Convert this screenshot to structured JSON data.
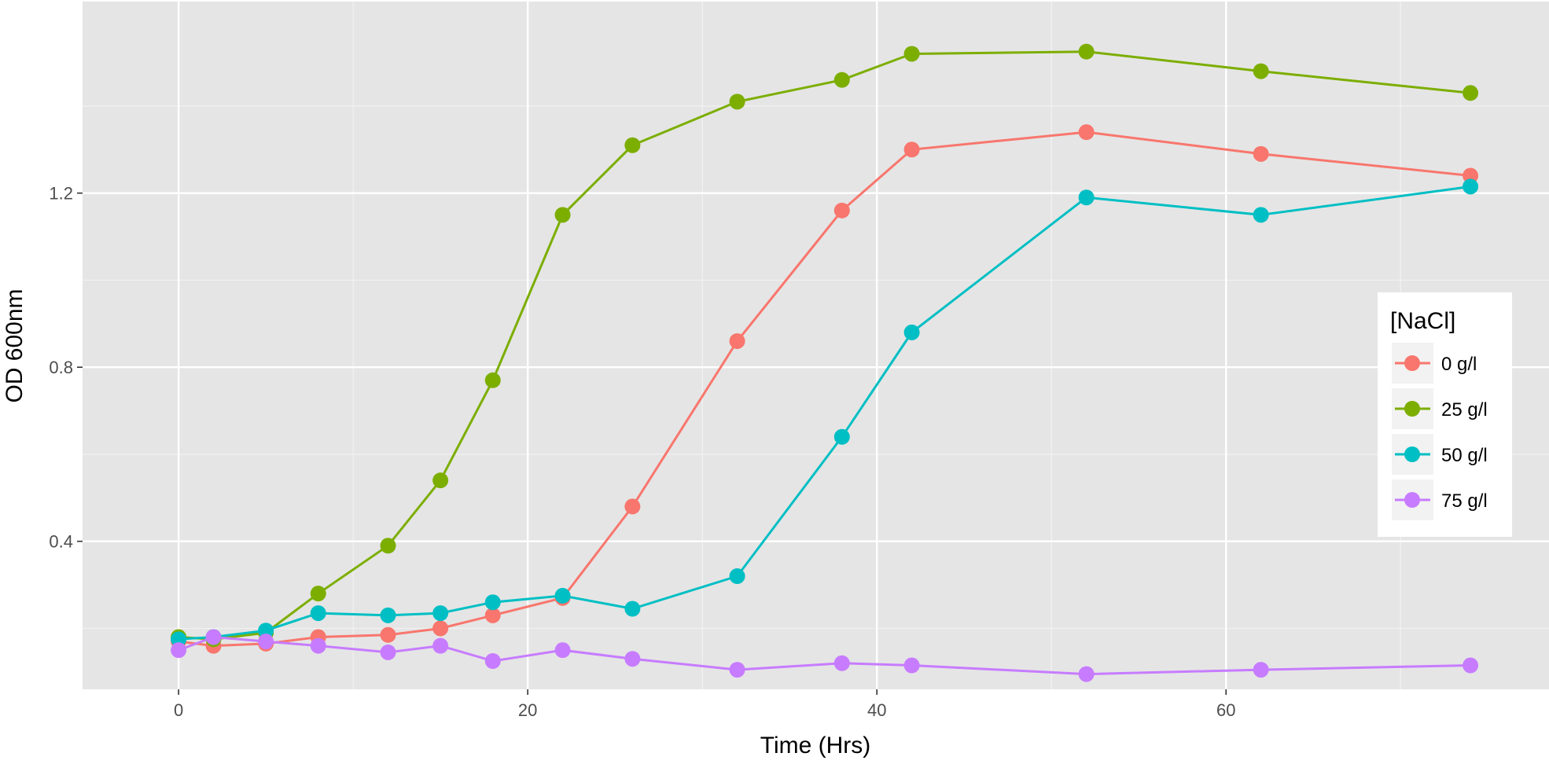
{
  "chart_data": {
    "type": "line",
    "xlabel": "Time (Hrs)",
    "ylabel": "OD 600nm",
    "xlim": [
      -5.5,
      78.5
    ],
    "ylim": [
      0.06,
      1.64
    ],
    "x_ticks": [
      0,
      20,
      40,
      60
    ],
    "x_tick_labels": [
      "0",
      "20",
      "40",
      "60"
    ],
    "y_ticks": [
      0.4,
      0.8,
      1.2
    ],
    "y_tick_labels": [
      "0.4",
      "0.8",
      "1.2"
    ],
    "grid": true,
    "legend": {
      "title": "[NaCl]",
      "placement": "right"
    },
    "x": [
      0,
      2,
      5,
      8,
      12,
      15,
      18,
      22,
      26,
      32,
      38,
      42,
      52,
      62,
      74
    ],
    "series": [
      {
        "name": "0 g/l",
        "color": "#F8766D",
        "values": [
          0.17,
          0.16,
          0.165,
          0.18,
          0.185,
          0.2,
          0.23,
          0.27,
          0.48,
          0.86,
          1.16,
          1.3,
          1.34,
          1.29,
          1.24
        ]
      },
      {
        "name": "25 g/l",
        "color": "#7CAE00",
        "values": [
          0.18,
          0.175,
          0.19,
          0.28,
          0.39,
          0.54,
          0.77,
          1.15,
          1.31,
          1.41,
          1.46,
          1.52,
          1.525,
          1.48,
          1.43
        ]
      },
      {
        "name": "50 g/l",
        "color": "#00BFC4",
        "values": [
          0.175,
          0.18,
          0.195,
          0.235,
          0.23,
          0.235,
          0.26,
          0.275,
          0.245,
          0.32,
          0.64,
          0.88,
          1.19,
          1.15,
          1.215
        ]
      },
      {
        "name": "75 g/l",
        "color": "#C77CFF",
        "values": [
          0.15,
          0.18,
          0.17,
          0.16,
          0.145,
          0.16,
          0.125,
          0.15,
          0.13,
          0.105,
          0.12,
          0.115,
          0.095,
          0.105,
          0.115
        ]
      }
    ]
  }
}
